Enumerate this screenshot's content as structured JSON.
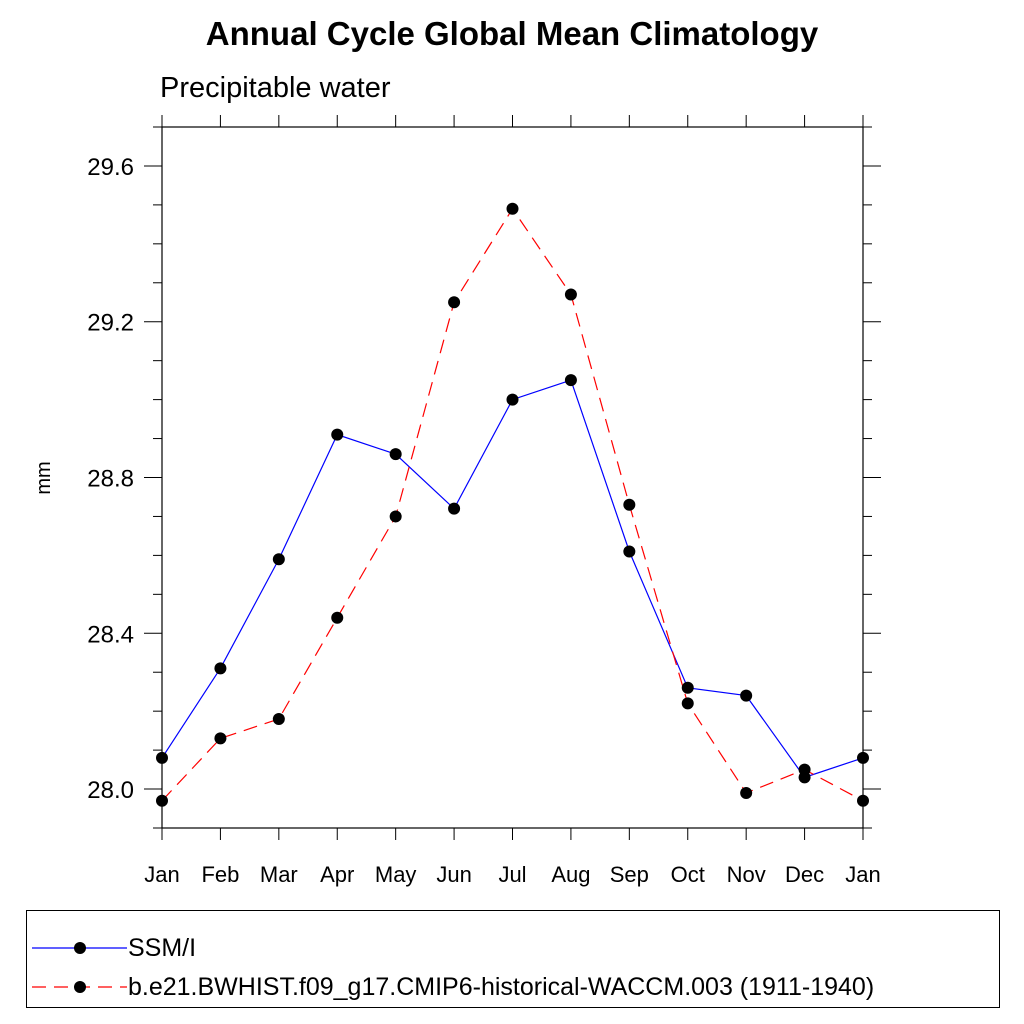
{
  "title": "Annual Cycle Global Mean Climatology",
  "subtitle": "Precipitable water",
  "chart_data": {
    "type": "line",
    "ylabel": "mm",
    "xlabel": "",
    "categories": [
      "Jan",
      "Feb",
      "Mar",
      "Apr",
      "May",
      "Jun",
      "Jul",
      "Aug",
      "Sep",
      "Oct",
      "Nov",
      "Dec",
      "Jan"
    ],
    "ylim": [
      27.9,
      29.7
    ],
    "yticks": [
      28.0,
      28.4,
      28.8,
      29.2,
      29.6
    ],
    "ytick_labels": [
      "28.0",
      "28.4",
      "28.8",
      "29.2",
      "29.6"
    ],
    "grid": false,
    "legend_position": "bottom",
    "series": [
      {
        "name": "SSM/I",
        "color": "#0000ff",
        "dash": "solid",
        "marker": "filled-circle",
        "values": [
          28.08,
          28.31,
          28.59,
          28.91,
          28.86,
          28.72,
          29.0,
          29.05,
          28.61,
          28.26,
          28.24,
          28.03,
          28.08
        ]
      },
      {
        "name": "b.e21.BWHIST.f09_g17.CMIP6-historical-WACCM.003 (1911-1940)",
        "color": "#ff0000",
        "dash": "dashed",
        "marker": "filled-circle",
        "values": [
          27.97,
          28.13,
          28.18,
          28.44,
          28.7,
          29.25,
          29.49,
          29.27,
          28.73,
          28.22,
          27.99,
          28.05,
          27.97
        ]
      }
    ]
  }
}
